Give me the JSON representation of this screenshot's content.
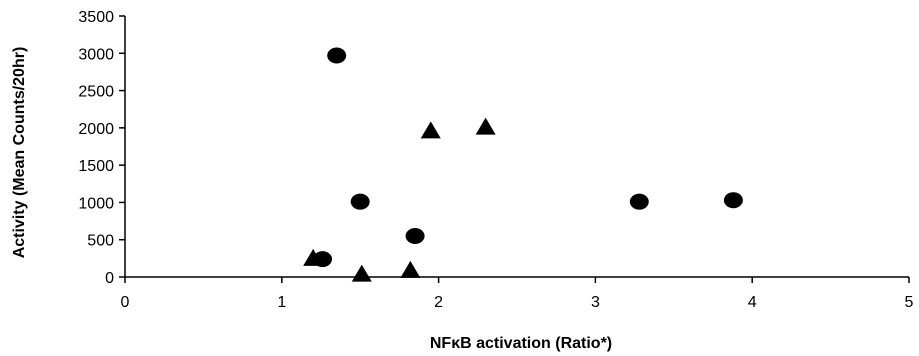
{
  "chart_data": {
    "type": "scatter",
    "xlabel": "NFκB activation (Ratio*)",
    "ylabel": "Activity (Mean Counts/20hr)",
    "xlim": [
      0,
      5
    ],
    "ylim": [
      0,
      3500
    ],
    "xticks": [
      "0",
      "1",
      "2",
      "3",
      "4",
      "5"
    ],
    "yticks": [
      "0",
      "500",
      "1000",
      "1500",
      "2000",
      "2500",
      "3000",
      "3500"
    ],
    "grid": false,
    "legend": "none",
    "series": [
      {
        "marker": "circle",
        "color": "#000000",
        "points": [
          {
            "x": 1.35,
            "y": 2970
          },
          {
            "x": 1.5,
            "y": 1010
          },
          {
            "x": 1.26,
            "y": 240
          },
          {
            "x": 1.85,
            "y": 550
          },
          {
            "x": 3.28,
            "y": 1010
          },
          {
            "x": 3.88,
            "y": 1030
          }
        ]
      },
      {
        "marker": "triangle",
        "color": "#000000",
        "points": [
          {
            "x": 1.95,
            "y": 1950
          },
          {
            "x": 2.3,
            "y": 2000
          },
          {
            "x": 1.2,
            "y": 240
          },
          {
            "x": 1.51,
            "y": 30
          },
          {
            "x": 1.82,
            "y": 80
          }
        ]
      }
    ]
  }
}
